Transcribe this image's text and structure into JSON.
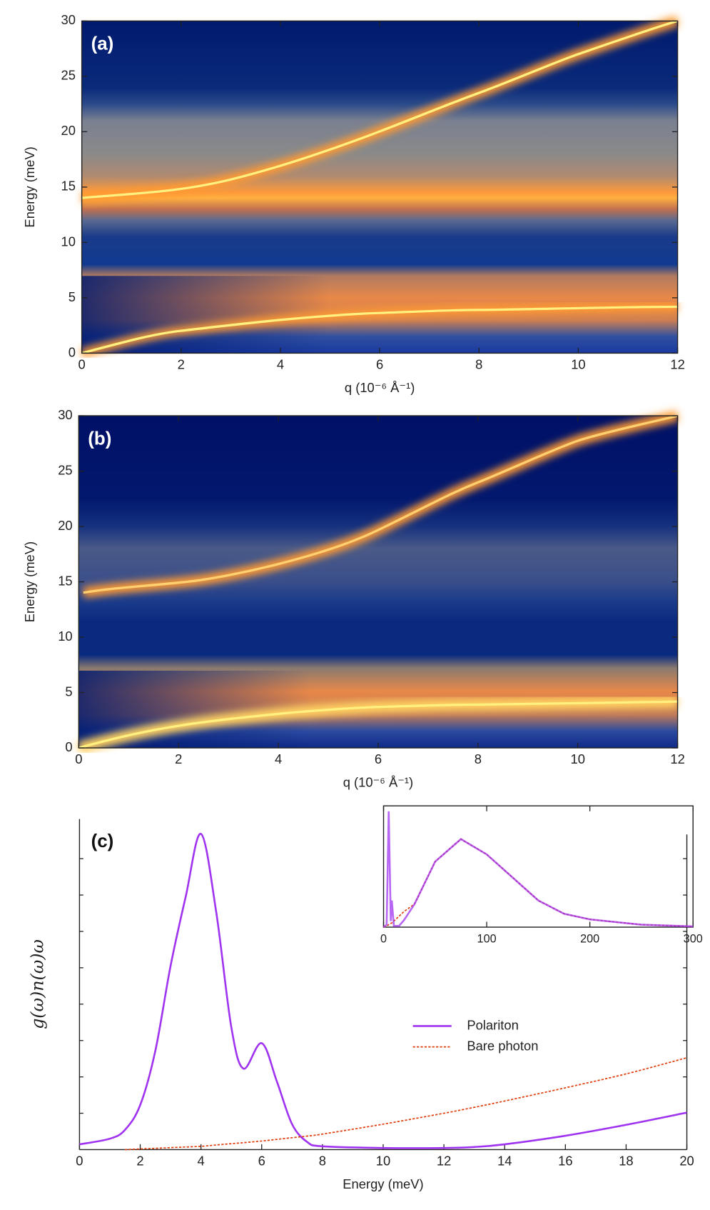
{
  "chart_data": [
    {
      "type": "heatmap",
      "label": "(a)",
      "xlabel": "q (10⁻⁶ Å⁻¹)",
      "ylabel": "Energy (meV)",
      "xlim": [
        0,
        12
      ],
      "xticks": [
        0,
        2,
        4,
        6,
        8,
        10,
        12
      ],
      "ylim": [
        0,
        30
      ],
      "yticks": [
        0,
        5,
        10,
        15,
        20,
        25,
        30
      ]
    },
    {
      "type": "heatmap",
      "label": "(b)",
      "xlabel": "q (10⁻⁶ Å⁻¹)",
      "ylabel": "Energy (meV)",
      "xlim": [
        0,
        12
      ],
      "xticks": [
        0,
        2,
        4,
        6,
        8,
        10,
        12
      ],
      "ylim": [
        0,
        30
      ],
      "yticks": [
        0,
        5,
        10,
        15,
        20,
        25,
        30
      ]
    },
    {
      "type": "line",
      "label": "(c)",
      "xlabel": "Energy (meV)",
      "ylabel": "g(ω)n(ω)ω",
      "xlim": [
        0,
        20
      ],
      "xticks": [
        0,
        2,
        4,
        6,
        8,
        10,
        12,
        14,
        16,
        18,
        20
      ],
      "ylim": [
        0,
        1
      ],
      "legend": "upper right",
      "x": [
        0,
        1,
        1.5,
        2,
        2.5,
        3,
        3.5,
        4,
        4.5,
        5,
        5.4,
        6,
        6.5,
        7,
        7.5,
        8,
        10,
        12,
        13,
        14,
        16,
        18,
        20
      ],
      "series": [
        {
          "name": "Polariton",
          "color": "#a033f0",
          "linestyle": "solid",
          "values": [
            0.016,
            0.033,
            0.06,
            0.135,
            0.3,
            0.556,
            0.766,
            0.955,
            0.72,
            0.37,
            0.245,
            0.322,
            0.206,
            0.077,
            0.023,
            0.01,
            0.005,
            0.005,
            0.008,
            0.016,
            0.042,
            0.075,
            0.112
          ]
        },
        {
          "name": "Bare photon",
          "color": "#e04010",
          "linestyle": "dotted",
          "values": [
            null,
            null,
            0,
            0.002,
            0.004,
            0.006,
            0.008,
            0.01,
            0.014,
            0.018,
            0.021,
            0.026,
            0.031,
            0.036,
            0.041,
            0.047,
            0.077,
            0.11,
            0.128,
            0.147,
            0.187,
            0.229,
            0.278
          ]
        }
      ]
    },
    {
      "type": "line",
      "xlim": [
        0,
        300
      ],
      "xticks": [
        0,
        100,
        200,
        300
      ],
      "ylim": [
        0,
        1
      ],
      "x": [
        0,
        3,
        5,
        7,
        8,
        10,
        15,
        20,
        30,
        50,
        75,
        100,
        125,
        150,
        175,
        200,
        250,
        300
      ],
      "series": [
        {
          "color": "#e04010",
          "linestyle": "dotted",
          "values": [
            0,
            0.01,
            0.02,
            0.03,
            0.035,
            0.05,
            0.09,
            0.13,
            0.19,
            0.54,
            0.726,
            0.6,
            0.41,
            0.22,
            0.11,
            0.064,
            0.02,
            0.006
          ]
        },
        {
          "color": "#a033f0",
          "linestyle": "solid",
          "values": [
            0,
            0.02,
            0.955,
            0.05,
            0.22,
            0.01,
            0.01,
            0.06,
            0.19,
            0.54,
            0.726,
            0.6,
            0.41,
            0.22,
            0.11,
            0.064,
            0.02,
            0.006
          ]
        }
      ]
    }
  ]
}
